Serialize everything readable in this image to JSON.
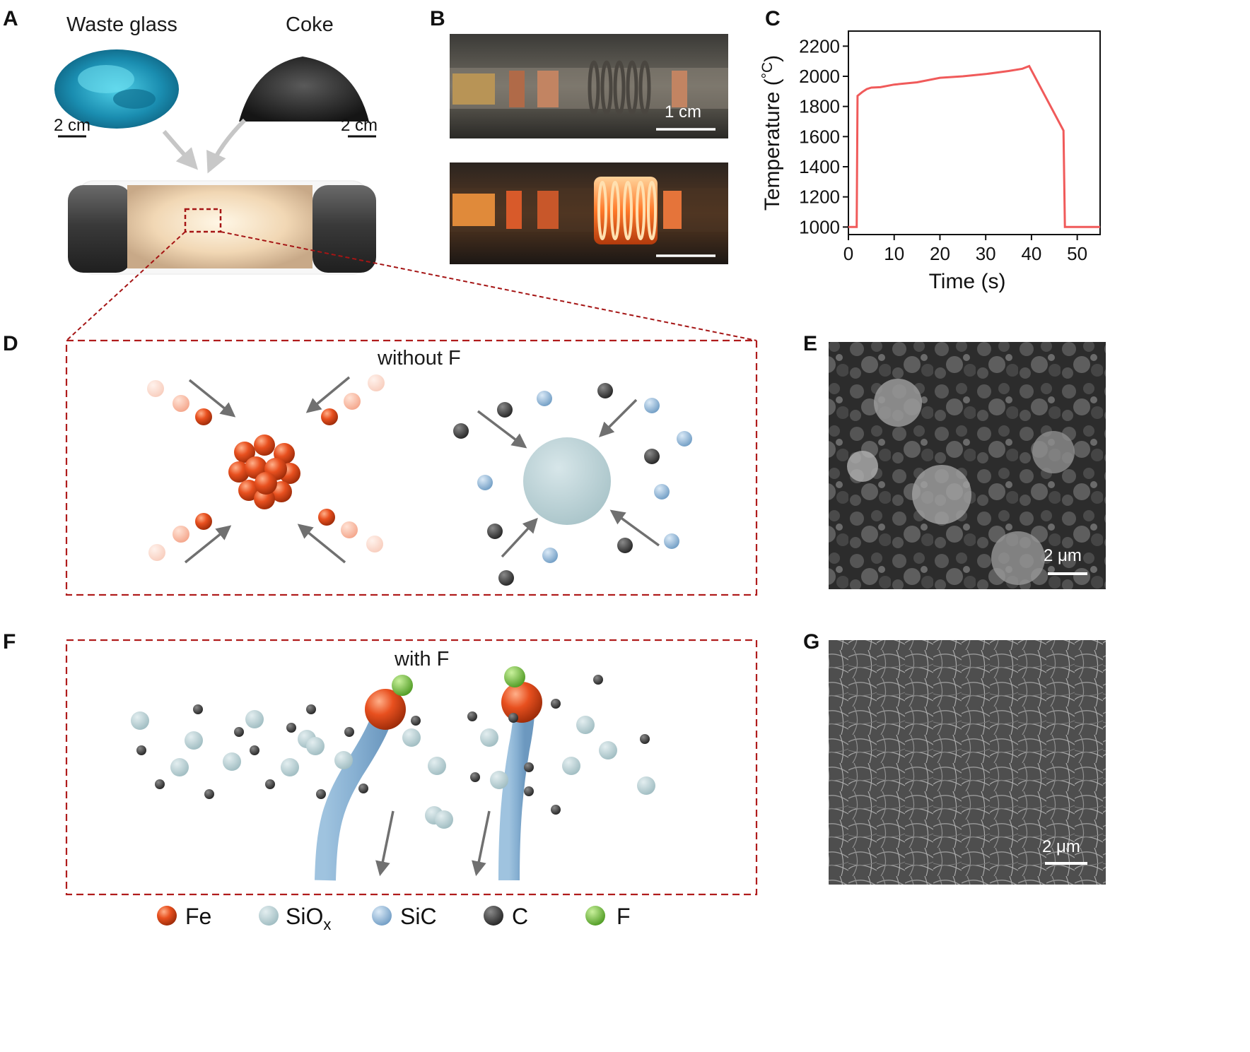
{
  "panels": {
    "a": "A",
    "b": "B",
    "c": "C",
    "d": "D",
    "e": "E",
    "f": "F",
    "g": "G"
  },
  "panel_a": {
    "waste_glass_label": "Waste glass",
    "coke_label": "Coke",
    "scale_left": "2 cm",
    "scale_right": "2 cm"
  },
  "panel_b": {
    "scale_label": "1 cm"
  },
  "panel_d": {
    "caption": "without F"
  },
  "panel_e": {
    "scale_label": "2 μm"
  },
  "panel_f": {
    "caption": "with F"
  },
  "panel_g": {
    "scale_label": "2 μm"
  },
  "legend": {
    "fe": "Fe",
    "siox_main": "SiO",
    "siox_sub": "x",
    "sic": "SiC",
    "c": "C",
    "f": "F"
  },
  "colors": {
    "fe": "#e2491f",
    "siox": "#b7cfd3",
    "sic": "#8fb6d6",
    "carbon": "#3d3d3d",
    "fluorine": "#6fbf3a",
    "dashed_box": "#b01c1c",
    "curve": "#f05a5a"
  },
  "chart_data": {
    "type": "line",
    "title": "",
    "xlabel": "Time (s)",
    "ylabel": "Temperature (°C)",
    "ylabel_main": "Temperature (",
    "ylabel_unit": "°C",
    "ylabel_close": ")",
    "xlim": [
      0,
      55
    ],
    "ylim": [
      950,
      2300
    ],
    "xticks": [
      0,
      10,
      20,
      30,
      40,
      50
    ],
    "yticks": [
      1000,
      1200,
      1400,
      1600,
      1800,
      2000,
      2200
    ],
    "series": [
      {
        "name": "Temperature",
        "x": [
          0,
          1.8,
          2.0,
          3,
          4,
          5,
          7,
          10,
          15,
          20,
          25,
          30,
          35,
          38,
          39.5,
          47,
          47.3,
          50,
          55
        ],
        "y": [
          1000,
          1000,
          1870,
          1895,
          1915,
          1925,
          1928,
          1945,
          1960,
          1990,
          2000,
          2015,
          2035,
          2050,
          2068,
          1640,
          1000,
          1000,
          1000
        ]
      }
    ]
  }
}
